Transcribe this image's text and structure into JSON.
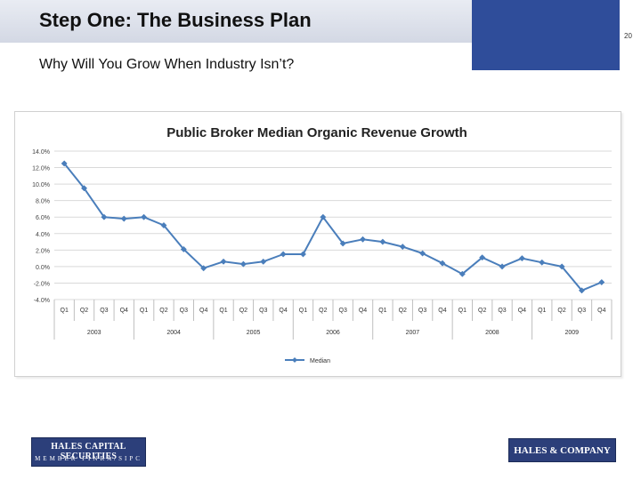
{
  "header": {
    "title": "Step One:  The Business Plan",
    "page_number": "20",
    "subtitle": "Why Will You Grow When Industry Isn’t?"
  },
  "logos": {
    "left_line1": "HALES CAPITAL SECURITIES",
    "left_line2": "MEMBER FINRA/SIPC",
    "right": "HALES & COMPANY"
  },
  "colors": {
    "header_block": "#2f4d9a",
    "series": "#4a7ebb",
    "grid": "#d9d9d9"
  },
  "chart_data": {
    "type": "line",
    "title": "Public Broker Median Organic Revenue Growth",
    "xlabel": "",
    "ylabel": "",
    "ylim": [
      -4.0,
      14.0
    ],
    "yticks": [
      "14.0%",
      "12.0%",
      "10.0%",
      "8.0%",
      "6.0%",
      "4.0%",
      "2.0%",
      "0.0%",
      "-2.0%",
      "-4.0%"
    ],
    "ytick_values": [
      14,
      12,
      10,
      8,
      6,
      4,
      2,
      0,
      -2,
      -4
    ],
    "categories": [
      "Q1",
      "Q2",
      "Q3",
      "Q4",
      "Q1",
      "Q2",
      "Q3",
      "Q4",
      "Q1",
      "Q2",
      "Q3",
      "Q4",
      "Q1",
      "Q2",
      "Q3",
      "Q4",
      "Q1",
      "Q2",
      "Q3",
      "Q4",
      "Q1",
      "Q2",
      "Q3",
      "Q4",
      "Q1",
      "Q2",
      "Q3",
      "Q4"
    ],
    "years": [
      "2003",
      "2004",
      "2005",
      "2006",
      "2007",
      "2008",
      "2009"
    ],
    "grid": true,
    "legend_position": "bottom",
    "series": [
      {
        "name": "Median",
        "values": [
          12.5,
          9.5,
          6.0,
          5.8,
          6.0,
          5.0,
          2.1,
          -0.2,
          0.6,
          0.3,
          0.6,
          1.5,
          1.5,
          6.0,
          2.8,
          3.3,
          3.0,
          2.4,
          1.6,
          0.4,
          -0.9,
          1.1,
          0.0,
          1.0,
          0.5,
          0.0,
          -2.9,
          -1.9
        ]
      }
    ]
  }
}
